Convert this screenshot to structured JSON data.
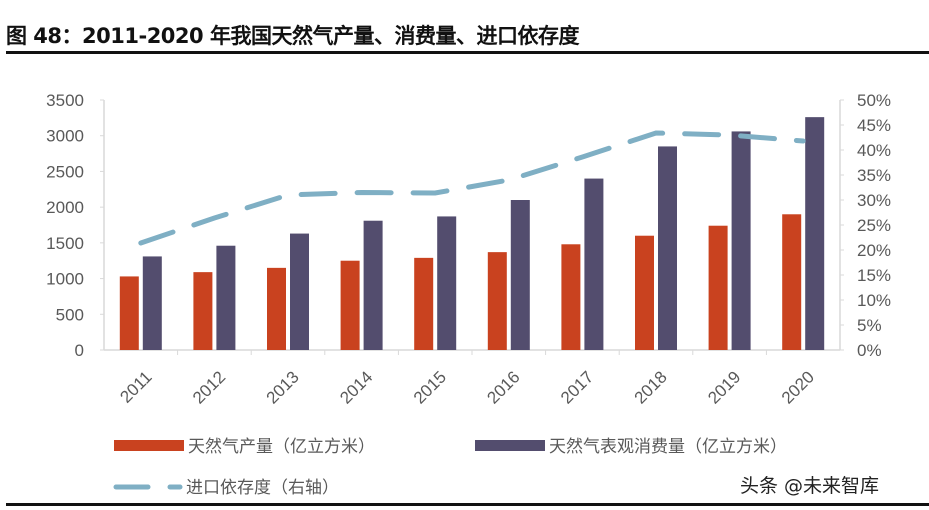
{
  "title": "图 48：2011-2020 年我国天然气产量、消费量、进口依存度",
  "watermark": "头条 @未来智库",
  "chart_data": {
    "type": "bar",
    "categories": [
      "2011",
      "2012",
      "2013",
      "2014",
      "2015",
      "2016",
      "2017",
      "2018",
      "2019",
      "2020"
    ],
    "series": [
      {
        "name": "天然气产量（亿立方米）",
        "kind": "bar",
        "axis": "left",
        "color": "#C9421F",
        "values": [
          1030,
          1090,
          1150,
          1250,
          1290,
          1370,
          1480,
          1600,
          1740,
          1900
        ]
      },
      {
        "name": "天然气表观消费量（亿立方米）",
        "kind": "bar",
        "axis": "left",
        "color": "#534D6E",
        "values": [
          1310,
          1460,
          1630,
          1810,
          1870,
          2100,
          2400,
          2850,
          3060,
          3260
        ]
      },
      {
        "name": "进口依存度（右轴）",
        "kind": "line-dashed",
        "axis": "right",
        "color": "#7FAFC4",
        "values": [
          21.4,
          26.4,
          31.0,
          31.5,
          31.4,
          34.0,
          38.6,
          43.4,
          43.0,
          41.8
        ]
      }
    ],
    "y_left": {
      "range": [
        0,
        3500
      ],
      "ticks": [
        "0",
        "500",
        "1000",
        "1500",
        "2000",
        "2500",
        "3000",
        "3500"
      ]
    },
    "y_right": {
      "range": [
        0,
        50
      ],
      "unit": "%",
      "ticks": [
        "0%",
        "5%",
        "10%",
        "15%",
        "20%",
        "25%",
        "30%",
        "35%",
        "40%",
        "45%",
        "50%"
      ]
    },
    "grid": false,
    "legend_position": "bottom"
  }
}
